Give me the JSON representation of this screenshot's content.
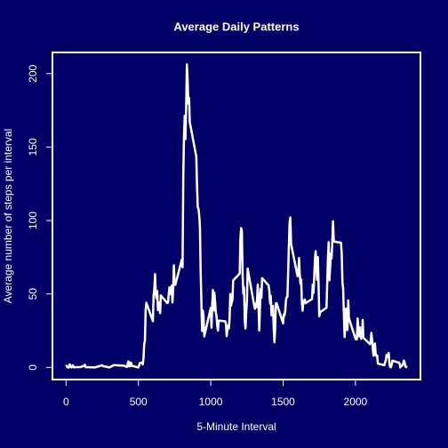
{
  "chart_data": {
    "type": "line",
    "title": "Average Daily Patterns",
    "xlabel": "5-Minute Interval",
    "ylabel": "Average number of steps per interval",
    "background": "#000066",
    "color": "#ffffff",
    "xlim": [
      -94.2,
      2449.2
    ],
    "ylim": [
      -8.25,
      214.4
    ],
    "xticks": [
      0,
      500,
      1000,
      1500,
      2000
    ],
    "yticks": [
      0,
      50,
      100,
      150,
      200
    ],
    "x": [
      0,
      10,
      20,
      25,
      30,
      40,
      45,
      55,
      100,
      125,
      130,
      135,
      200,
      250,
      255,
      300,
      330,
      400,
      420,
      430,
      435,
      440,
      445,
      450,
      455,
      500,
      505,
      510,
      520,
      530,
      535,
      540,
      545,
      550,
      555,
      600,
      605,
      610,
      615,
      620,
      625,
      630,
      635,
      640,
      645,
      650,
      655,
      700,
      705,
      710,
      715,
      720,
      725,
      730,
      735,
      740,
      745,
      750,
      755,
      800,
      805,
      810,
      815,
      820,
      825,
      830,
      835,
      840,
      845,
      850,
      855,
      900,
      905,
      910,
      915,
      920,
      925,
      930,
      935,
      940,
      945,
      950,
      955,
      1000,
      1005,
      1010,
      1015,
      1020,
      1025,
      1030,
      1035,
      1040,
      1045,
      1050,
      1055,
      1100,
      1105,
      1110,
      1115,
      1120,
      1125,
      1130,
      1135,
      1140,
      1145,
      1150,
      1155,
      1200,
      1205,
      1210,
      1215,
      1220,
      1225,
      1230,
      1235,
      1240,
      1245,
      1250,
      1255,
      1300,
      1305,
      1310,
      1315,
      1320,
      1325,
      1330,
      1335,
      1340,
      1345,
      1350,
      1355,
      1400,
      1405,
      1410,
      1415,
      1420,
      1425,
      1430,
      1435,
      1440,
      1445,
      1450,
      1455,
      1500,
      1505,
      1510,
      1515,
      1520,
      1525,
      1530,
      1535,
      1540,
      1545,
      1550,
      1555,
      1600,
      1605,
      1610,
      1615,
      1620,
      1625,
      1630,
      1635,
      1640,
      1645,
      1650,
      1655,
      1700,
      1705,
      1710,
      1715,
      1720,
      1725,
      1730,
      1735,
      1740,
      1745,
      1750,
      1755,
      1800,
      1805,
      1810,
      1815,
      1820,
      1825,
      1830,
      1835,
      1840,
      1845,
      1850,
      1855,
      1900,
      1905,
      1910,
      1915,
      1920,
      1925,
      1930,
      1935,
      1940,
      1945,
      1950,
      1955,
      2000,
      2005,
      2010,
      2015,
      2020,
      2025,
      2030,
      2035,
      2040,
      2045,
      2050,
      2055,
      2100,
      2105,
      2110,
      2115,
      2120,
      2125,
      2130,
      2135,
      2140,
      2145,
      2150,
      2155,
      2200,
      2205,
      2210,
      2215,
      2220,
      2225,
      2230,
      2235,
      2240,
      2245,
      2250,
      2255,
      2300,
      2305,
      2310,
      2315,
      2320,
      2325,
      2330,
      2335,
      2340,
      2345,
      2350,
      2355
    ],
    "values": [
      1.7,
      0.1,
      0,
      2.1,
      0.5,
      0,
      1.5,
      0.1,
      0.3,
      1.1,
      1.8,
      0.2,
      0,
      1.5,
      0.9,
      0,
      1.6,
      1.2,
      0.3,
      4.1,
      0.7,
      3.5,
      0.8,
      3.1,
      1.1,
      0,
      1.6,
      3,
      3.3,
      2.1,
      6,
      16,
      18.3,
      39,
      44,
      31.5,
      49,
      53.8,
      63.5,
      50,
      47,
      52,
      39,
      44,
      44.2,
      37,
      49,
      43.8,
      44.4,
      50.5,
      54.5,
      49.9,
      51,
      55.7,
      44.3,
      52.3,
      69.5,
      57.8,
      56.2,
      73.4,
      68.2,
      129.4,
      157.5,
      171.2,
      155.4,
      177.3,
      206.2,
      195.9,
      179.6,
      183.4,
      167,
      143.5,
      124,
      109.1,
      108.1,
      103.7,
      96,
      66.2,
      45.2,
      24.8,
      38.8,
      35,
      21.1,
      40.6,
      27,
      42.4,
      52.7,
      38.9,
      50.8,
      44.3,
      37.4,
      34.7,
      28.3,
      25.1,
      31.9,
      31.4,
      29.7,
      21.3,
      25.5,
      28.4,
      26.5,
      33.4,
      50,
      42,
      44.6,
      46,
      59.2,
      63.9,
      87.7,
      94.8,
      92.8,
      63.4,
      50.2,
      54.5,
      32.4,
      26.5,
      37.7,
      45.1,
      67.3,
      42.3,
      39.9,
      43.3,
      41,
      46.2,
      56.4,
      42.8,
      25.1,
      40,
      53.5,
      47.3,
      60.8,
      55.8,
      52,
      43.6,
      48.7,
      35.5,
      37.5,
      41.8,
      27.5,
      17.1,
      26.1,
      43.6,
      43.8,
      30,
      36.1,
      35.5,
      38.8,
      46,
      47.8,
      48.1,
      65.3,
      82.9,
      98.7,
      102.1,
      84,
      62.1,
      64.1,
      74.5,
      63.2,
      56.9,
      59.8,
      43.9,
      38.6,
      44.7,
      45.5,
      46.2,
      43.7,
      46.6,
      56.3,
      50.7,
      61.2,
      73.4,
      79.1,
      68.9,
      59.7,
      75.1,
      56.5,
      34.8,
      37.5,
      40.7,
      58,
      74.7,
      85.3,
      59.3,
      67.8,
      77.7,
      74.2,
      85.3,
      99.5,
      86.6,
      85.6,
      84.9,
      77.8,
      58,
      53.4,
      36.3,
      20.7,
      27.4,
      40,
      30.2,
      25.5,
      45.7,
      33.5,
      19.6,
      19,
      19.3,
      33.3,
      26.8,
      21.2,
      27.3,
      21.3,
      19.5,
      21.3,
      32.3,
      20.2,
      15.9,
      17.2,
      23.5,
      19.2,
      12.5,
      8,
      14.7,
      16.3,
      8.7,
      7.8,
      8.1,
      2.6,
      1.5,
      3.7,
      4.8,
      8.5,
      7.1,
      8.7,
      9.8,
      2.2,
      0.3,
      0.1,
      1.6,
      4.6,
      3.3,
      2.8,
      0,
      0.8,
      1,
      1.6,
      2.6,
      4.7,
      3.3,
      0.6,
      0.2,
      1.1
    ]
  }
}
